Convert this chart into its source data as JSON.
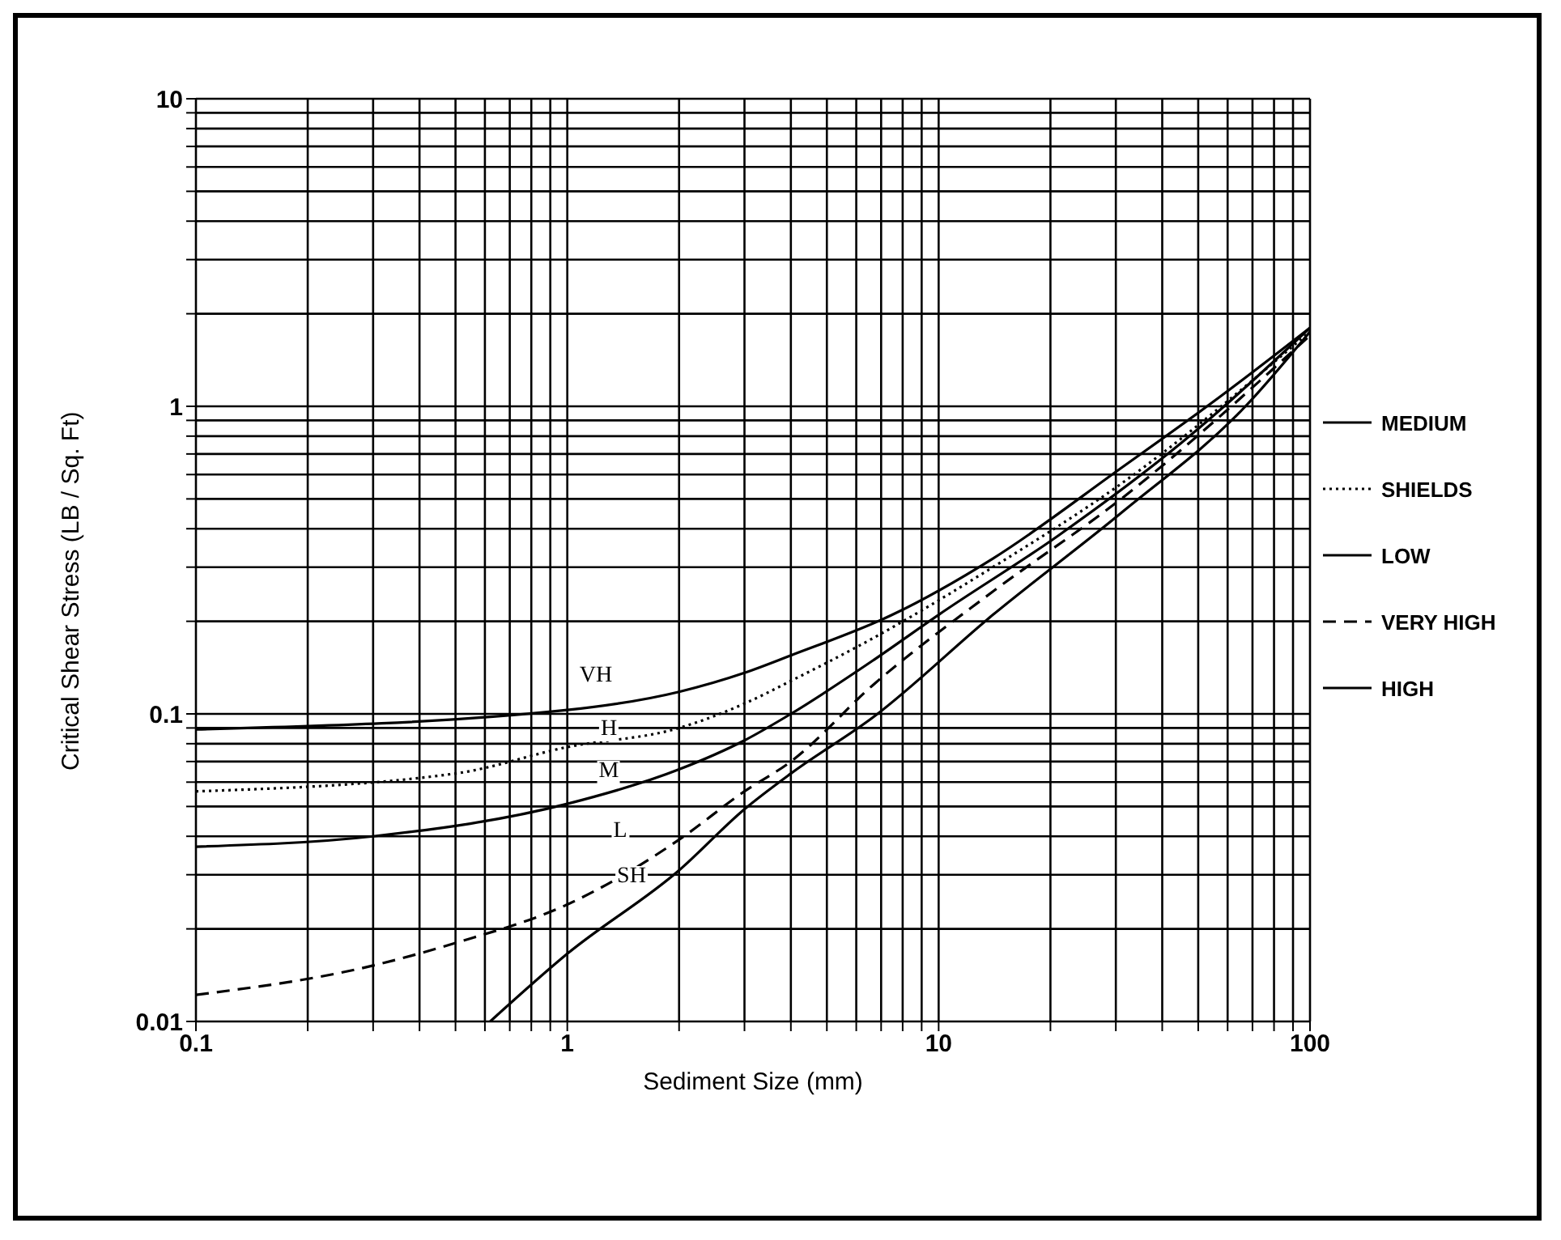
{
  "chart_data": {
    "type": "line",
    "xlabel": "Sediment Size (mm)",
    "ylabel": "Critical Shear Stress (LB / Sq. Ft)",
    "log": "xy",
    "grid": true,
    "legend": "right",
    "marker": "none",
    "xlim": [
      0.1,
      100
    ],
    "ylim": [
      0.01,
      10
    ],
    "xticks": [
      0.1,
      {
        "value": 0.2,
        "label": null
      },
      {
        "value": 0.3,
        "label": null
      },
      {
        "value": 0.4,
        "label": null
      },
      {
        "value": 0.5,
        "label": null
      },
      {
        "value": 0.6,
        "label": null
      },
      {
        "value": 0.7,
        "label": null
      },
      {
        "value": 0.8,
        "label": null
      },
      {
        "value": 0.9,
        "label": null
      },
      1,
      {
        "value": 2,
        "label": null
      },
      {
        "value": 3,
        "label": null
      },
      {
        "value": 4,
        "label": null
      },
      {
        "value": 5,
        "label": null
      },
      {
        "value": 6,
        "label": null
      },
      {
        "value": 7,
        "label": null
      },
      {
        "value": 8,
        "label": null
      },
      {
        "value": 9,
        "label": null
      },
      10,
      {
        "value": 20,
        "label": null
      },
      {
        "value": 30,
        "label": null
      },
      {
        "value": 40,
        "label": null
      },
      {
        "value": 50,
        "label": null
      },
      {
        "value": 60,
        "label": null
      },
      {
        "value": 70,
        "label": null
      },
      {
        "value": 80,
        "label": null
      },
      {
        "value": 90,
        "label": null
      },
      100
    ],
    "yticks": [
      0.01,
      {
        "value": 0.02,
        "label": null
      },
      {
        "value": 0.03,
        "label": null
      },
      {
        "value": 0.04,
        "label": null
      },
      {
        "value": 0.05,
        "label": null
      },
      {
        "value": 0.06,
        "label": null
      },
      {
        "value": 0.07,
        "label": null
      },
      {
        "value": 0.08,
        "label": null
      },
      {
        "value": 0.09,
        "label": null
      },
      0.1,
      {
        "value": 0.2,
        "label": null
      },
      {
        "value": 0.3,
        "label": null
      },
      {
        "value": 0.4,
        "label": null
      },
      {
        "value": 0.5,
        "label": null
      },
      {
        "value": 0.6,
        "label": null
      },
      {
        "value": 0.7,
        "label": null
      },
      {
        "value": 0.8,
        "label": null
      },
      {
        "value": 0.9,
        "label": null
      },
      1,
      {
        "value": 2,
        "label": null
      },
      {
        "value": 3,
        "label": null
      },
      {
        "value": 4,
        "label": null
      },
      {
        "value": 5,
        "label": null
      },
      {
        "value": 6,
        "label": null
      },
      {
        "value": 7,
        "label": null
      },
      {
        "value": 8,
        "label": null
      },
      {
        "value": 9,
        "label": null
      },
      10
    ],
    "series": [
      {
        "name": "MEDIUM",
        "color": "#000000",
        "line_style": "solid",
        "x": [
          0.1,
          0.3,
          1,
          2,
          3,
          4,
          6.7,
          10,
          21,
          45,
          100
        ],
        "values": [
          0.037,
          0.04,
          0.051,
          0.066,
          0.082,
          0.1,
          0.15,
          0.21,
          0.38,
          0.76,
          1.8
        ]
      },
      {
        "name": "SHIELDS",
        "color": "#000000",
        "line_style": "dotted",
        "x": [
          0.1,
          0.5,
          1,
          2,
          3,
          4,
          6.7,
          14,
          31,
          100
        ],
        "values": [
          0.056,
          0.064,
          0.078,
          0.09,
          0.108,
          0.128,
          0.177,
          0.3,
          0.56,
          1.75
        ]
      },
      {
        "name": "LOW",
        "color": "#000000",
        "line_style": "solid",
        "x": [
          0.62,
          1,
          2,
          3,
          4,
          6.7,
          14,
          31,
          67,
          100
        ],
        "values": [
          0.01,
          0.0166,
          0.031,
          0.049,
          0.064,
          0.098,
          0.21,
          0.45,
          1.0,
          1.75
        ]
      },
      {
        "name": "VERY HIGH",
        "color": "#000000",
        "line_style": "dashed",
        "x": [
          0.1,
          0.3,
          0.5,
          1,
          2,
          3,
          4,
          6.7,
          14,
          31,
          100
        ],
        "values": [
          0.0122,
          0.0152,
          0.018,
          0.024,
          0.039,
          0.056,
          0.07,
          0.125,
          0.25,
          0.5,
          1.7
        ]
      },
      {
        "name": "HIGH",
        "color": "#000000",
        "line_style": "solid",
        "x": [
          0.1,
          1,
          2,
          3,
          4,
          7.5,
          14,
          31,
          57,
          100
        ],
        "values": [
          0.089,
          0.103,
          0.118,
          0.136,
          0.155,
          0.21,
          0.32,
          0.63,
          1.07,
          1.8
        ]
      }
    ],
    "annotations": [
      "VH",
      "H",
      "M",
      "L",
      "SH"
    ]
  }
}
